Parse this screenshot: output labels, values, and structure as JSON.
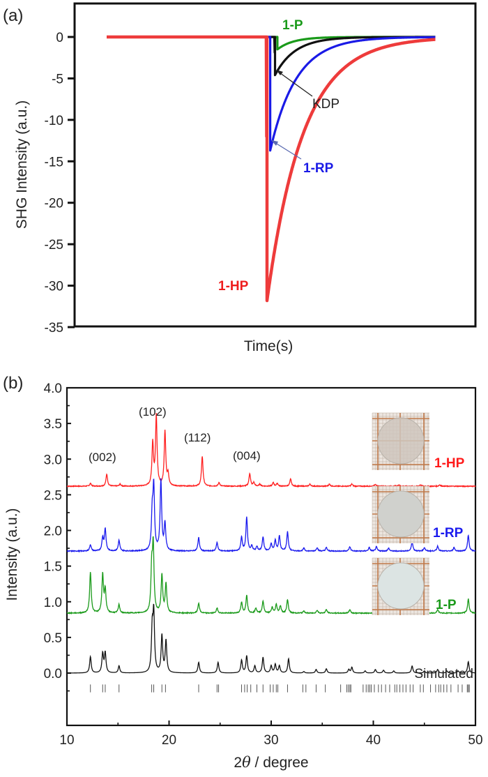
{
  "chart_data": [
    {
      "panel": "(a)",
      "type": "line",
      "title": "",
      "xlabel": "Time(s)",
      "ylabel": "SHG Intensity (a.u.)",
      "ylim": [
        -35,
        3
      ],
      "yticks": [
        0,
        -5,
        -10,
        -15,
        -20,
        -25,
        -30,
        -35
      ],
      "ytick_labels": [
        "0",
        "-5",
        "-10",
        "-15",
        "-20",
        "-25",
        "-30",
        "-35"
      ],
      "xlim": [
        0,
        100
      ],
      "x_note": "time axis unlabeled (no ticks)",
      "series": [
        {
          "name": "1-HP",
          "color": "#ee3b3b",
          "baseline": 0,
          "onset": 48,
          "peak": -31.8,
          "tau": 9.0
        },
        {
          "name": "1-RP",
          "color": "#1a1ae6",
          "baseline": 0,
          "onset": 48.8,
          "peak": -13.7,
          "tau": 6.5
        },
        {
          "name": "KDP",
          "color": "#111111",
          "baseline": 0,
          "onset": 50.0,
          "peak": -4.6,
          "tau": 5.0
        },
        {
          "name": "1-P",
          "color": "#1a9a1a",
          "baseline": 0,
          "onset": 50.6,
          "peak": -1.5,
          "tau": 4.0
        }
      ],
      "data_range": [
        8,
        90
      ],
      "annotations": [
        {
          "text": "1-P",
          "color": "#1a9a1a"
        },
        {
          "text": "KDP",
          "color": "#222222",
          "arrow": true
        },
        {
          "text": "1-RP",
          "color": "#1a1ae6",
          "arrow": true
        },
        {
          "text": "1-HP",
          "color": "#ee1c1c"
        }
      ]
    },
    {
      "panel": "(b)",
      "type": "line",
      "title": "",
      "xlabel": "2θ / degree",
      "ylabel": "Intensity (a.u.)",
      "xlim": [
        10,
        50
      ],
      "ylim": [
        -0.45,
        4.0
      ],
      "xticks": [
        10,
        20,
        30,
        40,
        50
      ],
      "xtick_labels": [
        "10",
        "20",
        "30",
        "40",
        "50"
      ],
      "yticks": [
        0.0,
        0.5,
        1.0,
        1.5,
        2.0,
        2.5,
        3.0,
        3.5,
        4.0
      ],
      "ytick_labels": [
        "0.0",
        "0.5",
        "1.0",
        "1.5",
        "2.0",
        "2.5",
        "3.0",
        "3.5",
        "4.0"
      ],
      "series": [
        {
          "name": "1-HP",
          "color": "#ff2020",
          "offset": 2.62,
          "peaks": [
            [
              12.3,
              0.04
            ],
            [
              13.9,
              0.17
            ],
            [
              15.2,
              0.03
            ],
            [
              18.4,
              0.6
            ],
            [
              18.75,
              0.98
            ],
            [
              19.6,
              0.77
            ],
            [
              19.9,
              0.16
            ],
            [
              23.25,
              0.42
            ],
            [
              24.9,
              0.05
            ],
            [
              27.9,
              0.18
            ],
            [
              28.3,
              0.05
            ],
            [
              28.9,
              0.03
            ],
            [
              30.2,
              0.05
            ],
            [
              30.6,
              0.04
            ],
            [
              31.9,
              0.1
            ],
            [
              33.8,
              0.03
            ],
            [
              35.7,
              0.03
            ],
            [
              37.9,
              0.03
            ],
            [
              40.2,
              0.03
            ],
            [
              42.5,
              0.02
            ],
            [
              44.6,
              0.02
            ],
            [
              46.5,
              0.02
            ]
          ]
        },
        {
          "name": "1-RP",
          "color": "#1a1aee",
          "offset": 1.71,
          "peaks": [
            [
              12.3,
              0.09
            ],
            [
              13.5,
              0.18
            ],
            [
              13.75,
              0.31
            ],
            [
              15.1,
              0.15
            ],
            [
              18.35,
              0.5
            ],
            [
              18.5,
              0.87
            ],
            [
              19.2,
              0.98
            ],
            [
              19.6,
              0.38
            ],
            [
              22.9,
              0.19
            ],
            [
              24.7,
              0.12
            ],
            [
              27.1,
              0.19
            ],
            [
              27.6,
              0.47
            ],
            [
              28.1,
              0.07
            ],
            [
              28.6,
              0.06
            ],
            [
              29.2,
              0.2
            ],
            [
              30.0,
              0.1
            ],
            [
              30.4,
              0.15
            ],
            [
              30.8,
              0.21
            ],
            [
              31.6,
              0.27
            ],
            [
              33.2,
              0.04
            ],
            [
              34.5,
              0.05
            ],
            [
              35.4,
              0.05
            ],
            [
              37.7,
              0.06
            ],
            [
              39.6,
              0.05
            ],
            [
              40.3,
              0.06
            ],
            [
              41.5,
              0.04
            ],
            [
              43.8,
              0.13
            ],
            [
              45.0,
              0.05
            ],
            [
              46.3,
              0.07
            ],
            [
              47.9,
              0.05
            ],
            [
              49.3,
              0.22
            ]
          ]
        },
        {
          "name": "1-P",
          "color": "#1a9a1a",
          "offset": 0.84,
          "peaks": [
            [
              12.3,
              0.58
            ],
            [
              13.5,
              0.54
            ],
            [
              13.75,
              0.32
            ],
            [
              15.1,
              0.12
            ],
            [
              18.3,
              0.6
            ],
            [
              18.45,
              0.91
            ],
            [
              19.3,
              0.53
            ],
            [
              19.7,
              0.41
            ],
            [
              22.9,
              0.14
            ],
            [
              24.7,
              0.07
            ],
            [
              27.1,
              0.15
            ],
            [
              27.6,
              0.25
            ],
            [
              28.5,
              0.07
            ],
            [
              29.2,
              0.17
            ],
            [
              30.1,
              0.08
            ],
            [
              30.5,
              0.12
            ],
            [
              30.9,
              0.1
            ],
            [
              31.6,
              0.19
            ],
            [
              33.2,
              0.03
            ],
            [
              34.5,
              0.04
            ],
            [
              35.4,
              0.05
            ],
            [
              37.7,
              0.05
            ],
            [
              40.3,
              0.05
            ],
            [
              43.8,
              0.1
            ],
            [
              46.3,
              0.05
            ],
            [
              49.3,
              0.2
            ]
          ]
        },
        {
          "name": "Simulated",
          "color": "#111111",
          "offset": 0.0,
          "peaks": [
            [
              12.3,
              0.23
            ],
            [
              13.5,
              0.27
            ],
            [
              13.75,
              0.28
            ],
            [
              15.1,
              0.1
            ],
            [
              18.35,
              0.58
            ],
            [
              18.5,
              0.81
            ],
            [
              19.3,
              0.52
            ],
            [
              19.7,
              0.45
            ],
            [
              22.9,
              0.15
            ],
            [
              24.8,
              0.15
            ],
            [
              27.1,
              0.18
            ],
            [
              27.6,
              0.24
            ],
            [
              28.4,
              0.1
            ],
            [
              29.2,
              0.22
            ],
            [
              30.0,
              0.1
            ],
            [
              30.4,
              0.12
            ],
            [
              30.8,
              0.1
            ],
            [
              31.7,
              0.2
            ],
            [
              33.2,
              0.02
            ],
            [
              34.4,
              0.05
            ],
            [
              35.4,
              0.06
            ],
            [
              37.6,
              0.05
            ],
            [
              37.9,
              0.08
            ],
            [
              39.2,
              0.03
            ],
            [
              40.2,
              0.05
            ],
            [
              41.0,
              0.04
            ],
            [
              42.0,
              0.03
            ],
            [
              43.8,
              0.1
            ],
            [
              45.0,
              0.03
            ],
            [
              46.3,
              0.05
            ],
            [
              47.2,
              0.03
            ],
            [
              48.3,
              0.03
            ],
            [
              49.3,
              0.16
            ]
          ]
        }
      ],
      "reflection_ticks": [
        12.3,
        13.5,
        13.75,
        15.1,
        18.3,
        18.5,
        19.3,
        19.65,
        22.9,
        24.7,
        24.85,
        27.1,
        27.4,
        27.65,
        28.0,
        28.6,
        29.2,
        29.9,
        30.2,
        30.5,
        30.65,
        31.6,
        33.1,
        33.4,
        34.4,
        35.3,
        36.8,
        37.4,
        37.55,
        37.7,
        37.8,
        39.0,
        39.3,
        39.5,
        39.65,
        39.8,
        40.1,
        40.5,
        40.8,
        41.2,
        41.6,
        42.1,
        42.3,
        42.6,
        42.9,
        43.2,
        43.6,
        43.9,
        44.6,
        44.9,
        45.6,
        46.1,
        46.4,
        46.6,
        46.9,
        47.2,
        47.6,
        48.3,
        48.7,
        49.2,
        49.3,
        49.4
      ],
      "annotations": [
        {
          "text": "(002)"
        },
        {
          "text": "(102)"
        },
        {
          "text": "(112)"
        },
        {
          "text": "(004)"
        },
        {
          "text": "Simulated",
          "color": "#222222"
        }
      ],
      "series_labels": [
        {
          "text": "1-HP",
          "color": "#ff1a1a"
        },
        {
          "text": "1-RP",
          "color": "#1a1aee"
        },
        {
          "text": "1-P",
          "color": "#1a9a1a"
        }
      ],
      "insets": [
        {
          "name": "1-HP pellet photo",
          "disk_color": "#cfc6bd"
        },
        {
          "name": "1-RP pellet photo",
          "disk_color": "#d0d1cd"
        },
        {
          "name": "1-P pellet photo",
          "disk_color": "#dce4e3"
        }
      ]
    }
  ],
  "panel_labels": {
    "a": "(a)",
    "b": "(b)"
  }
}
